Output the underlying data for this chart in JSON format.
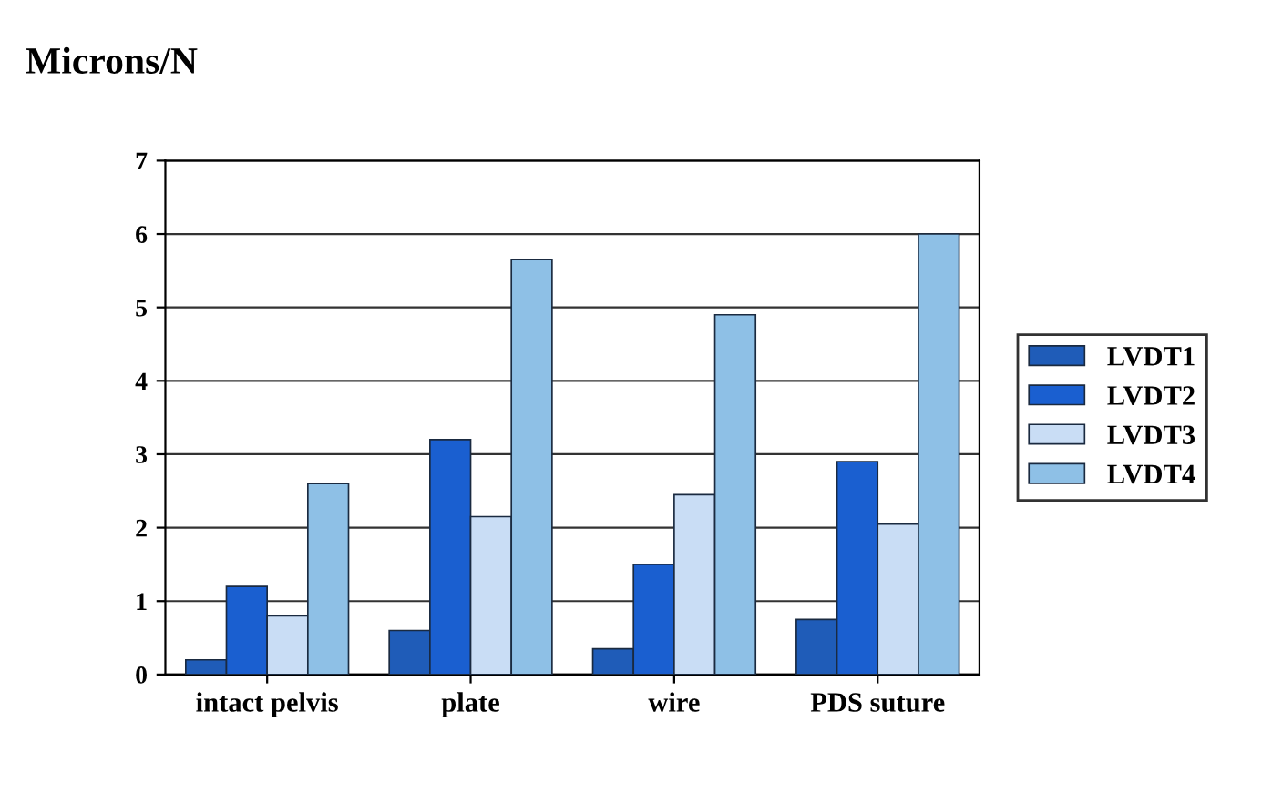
{
  "chart_data": {
    "type": "bar",
    "title": "Microns/N",
    "categories": [
      "intact pelvis",
      "plate",
      "wire",
      "PDS suture"
    ],
    "series": [
      {
        "name": "LVDT1",
        "color": "#1f5cb8",
        "values": [
          0.2,
          0.6,
          0.35,
          0.75
        ]
      },
      {
        "name": "LVDT2",
        "color": "#1a5fd0",
        "values": [
          1.2,
          3.2,
          1.5,
          2.9
        ]
      },
      {
        "name": "LVDT3",
        "color": "#c9ddf5",
        "values": [
          0.8,
          2.15,
          2.45,
          2.05
        ]
      },
      {
        "name": "LVDT4",
        "color": "#8ec0e6",
        "values": [
          2.6,
          5.65,
          4.9,
          6.0
        ]
      }
    ],
    "ylim": [
      0,
      7
    ],
    "yticks": [
      0,
      1,
      2,
      3,
      4,
      5,
      6,
      7
    ],
    "grid": "y",
    "legend": "right"
  }
}
